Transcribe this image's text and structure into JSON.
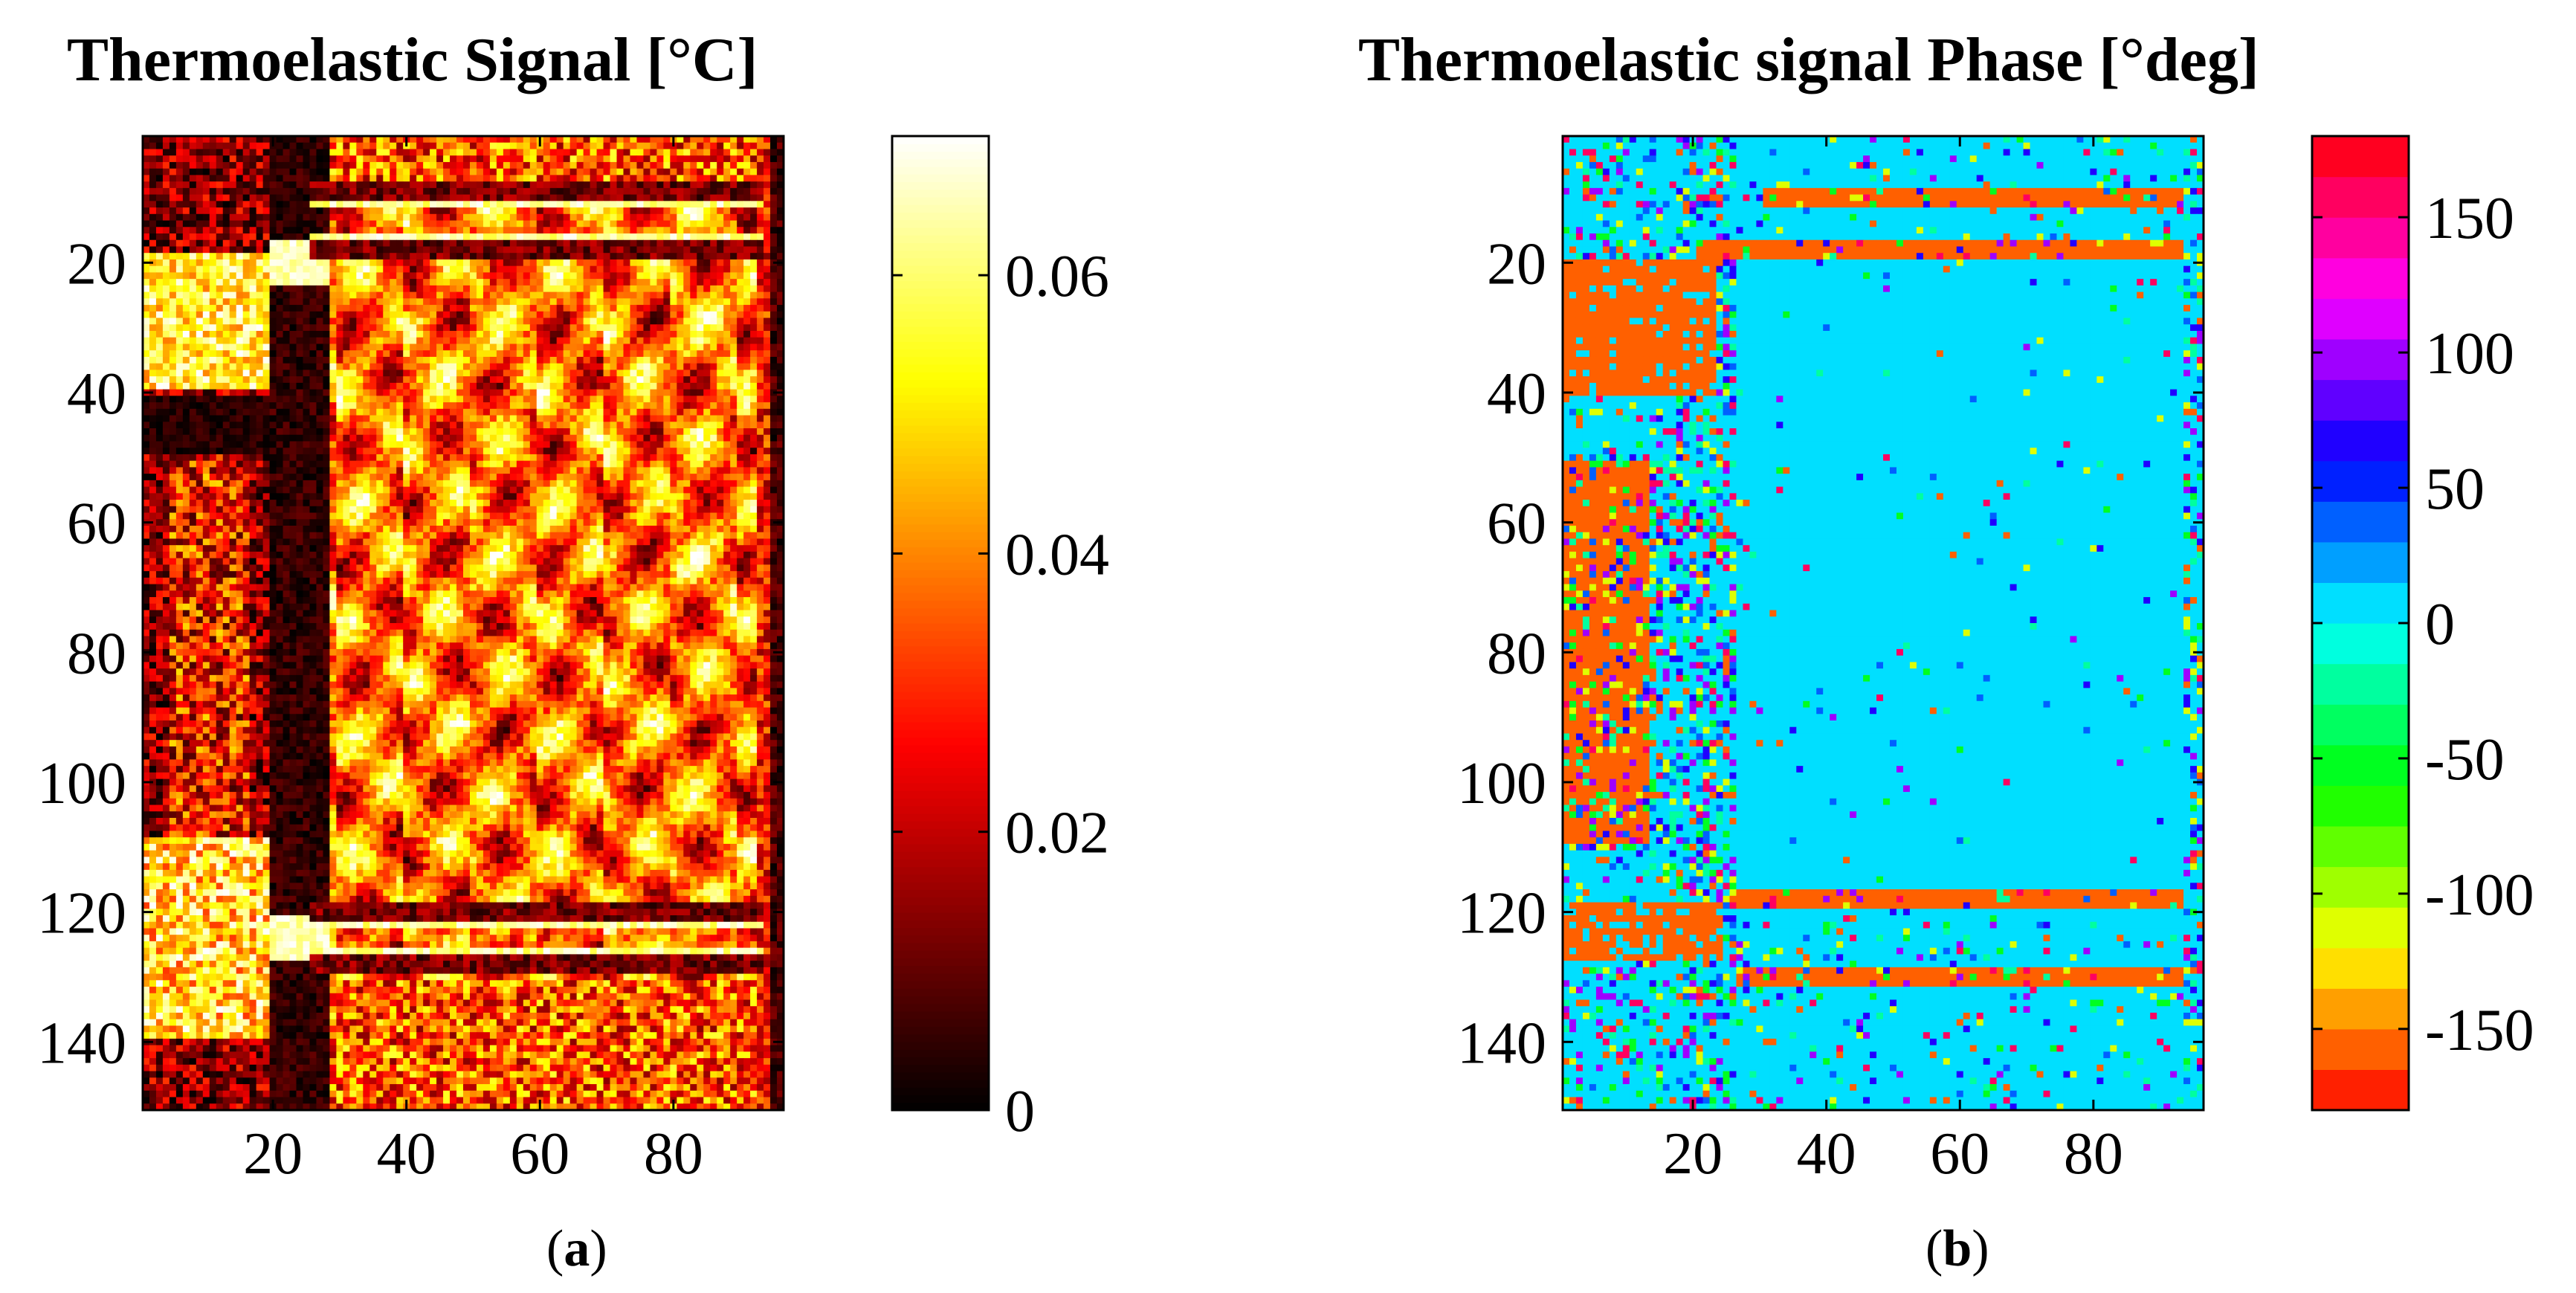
{
  "panels": [
    {
      "id": "a",
      "caption_letter": "a",
      "chart_data": {
        "type": "heatmap",
        "title": "Thermoelastic Signal [°C]",
        "xlabel": "",
        "ylabel": "",
        "x_range": [
          1,
          96
        ],
        "y_range": [
          1,
          150
        ],
        "x_ticks": [
          20,
          40,
          60,
          80
        ],
        "y_ticks": [
          20,
          40,
          60,
          80,
          100,
          120,
          140
        ],
        "colormap": "hot",
        "colorbar": {
          "range": [
            0,
            0.07
          ],
          "ticks": [
            0,
            0.02,
            0.04,
            0.06
          ],
          "tick_labels": [
            "0",
            "0.02",
            "0.04",
            "0.06"
          ]
        }
      }
    },
    {
      "id": "b",
      "caption_letter": "b",
      "chart_data": {
        "type": "heatmap",
        "title": "Thermoelastic signal Phase [°deg]",
        "xlabel": "",
        "ylabel": "",
        "x_range": [
          1,
          96
        ],
        "y_range": [
          1,
          150
        ],
        "x_ticks": [
          20,
          40,
          60,
          80
        ],
        "y_ticks": [
          20,
          40,
          60,
          80,
          100,
          120,
          140
        ],
        "colormap": "hsv (24 levels)",
        "colorbar": {
          "range": [
            -180,
            180
          ],
          "ticks": [
            -150,
            -100,
            -50,
            0,
            50,
            100,
            150
          ],
          "tick_labels": [
            "-150",
            "-100",
            "-50",
            "0",
            "50",
            "100",
            "150"
          ]
        }
      }
    }
  ]
}
